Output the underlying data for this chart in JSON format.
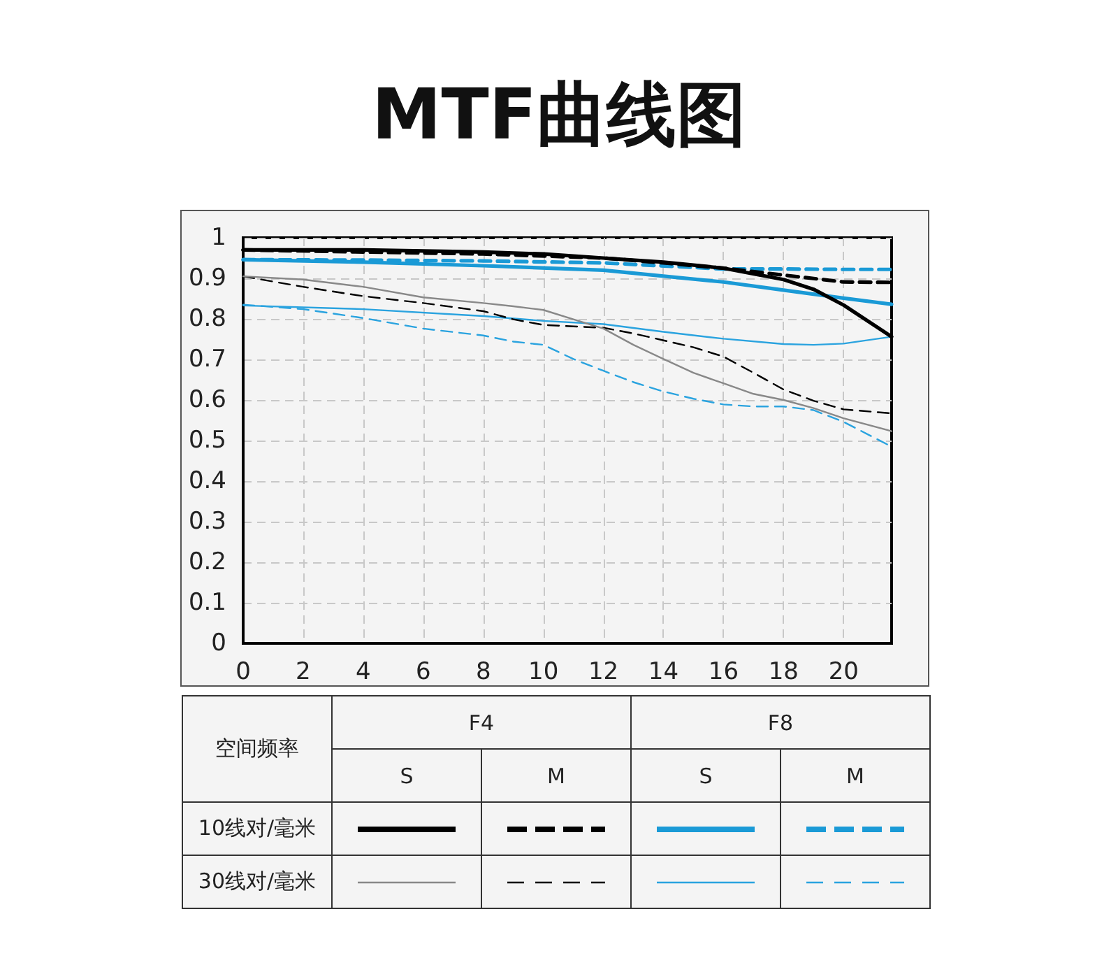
{
  "chart_data": {
    "type": "line",
    "title": "MTF曲线图",
    "xlim": [
      0,
      21.6
    ],
    "xticks": [
      0,
      2,
      4,
      6,
      8,
      10,
      12,
      14,
      16,
      18,
      20
    ],
    "ylim": [
      0,
      1
    ],
    "yticks": [
      0,
      0.1,
      0.2,
      0.3,
      0.4,
      0.5,
      0.6,
      0.7,
      0.8,
      0.9,
      1
    ],
    "grid": true,
    "marker": "none",
    "annotations": [
      "空间频率",
      "F4",
      "F8",
      "S",
      "M",
      "S",
      "M",
      "10线对/毫米",
      "30线对/毫米"
    ],
    "series": [
      {
        "color": "#000000",
        "line_style": "solid",
        "x": [
          0,
          4,
          8,
          10,
          12,
          14,
          16,
          18,
          19,
          20,
          21.6
        ],
        "values": [
          0.97,
          0.97,
          0.965,
          0.96,
          0.95,
          0.94,
          0.925,
          0.897,
          0.873,
          0.834,
          0.756
        ]
      },
      {
        "color": "#000000",
        "line_style": "dashed",
        "x": [
          0,
          4,
          8,
          12,
          14,
          16,
          18,
          20,
          21.6
        ],
        "values": [
          0.97,
          0.965,
          0.96,
          0.95,
          0.938,
          0.925,
          0.908,
          0.891,
          0.89
        ]
      },
      {
        "color": "#1a9ad6",
        "line_style": "solid",
        "x": [
          0,
          4,
          8,
          12,
          16,
          18,
          20,
          21.6
        ],
        "values": [
          0.946,
          0.94,
          0.931,
          0.92,
          0.891,
          0.871,
          0.851,
          0.836
        ]
      },
      {
        "color": "#1a9ad6",
        "line_style": "dashed",
        "x": [
          0,
          4,
          8,
          12,
          16,
          18,
          20,
          21.6
        ],
        "values": [
          0.946,
          0.945,
          0.943,
          0.938,
          0.923,
          0.923,
          0.922,
          0.922
        ]
      },
      {
        "color": "#888888",
        "line_style": "solid",
        "x": [
          0,
          2,
          4,
          6,
          8,
          9,
          10,
          11,
          12,
          13,
          14,
          15,
          16,
          17,
          18,
          19,
          20,
          21.6
        ],
        "values": [
          0.905,
          0.897,
          0.879,
          0.853,
          0.839,
          0.831,
          0.822,
          0.799,
          0.776,
          0.736,
          0.701,
          0.667,
          0.641,
          0.615,
          0.6,
          0.58,
          0.555,
          0.523
        ]
      },
      {
        "color": "#000000",
        "line_style": "dashed",
        "x": [
          0,
          2,
          4,
          6,
          8,
          9,
          10,
          12,
          13,
          14,
          15,
          16,
          17,
          18,
          19,
          20,
          21.6
        ],
        "values": [
          0.905,
          0.879,
          0.856,
          0.839,
          0.819,
          0.799,
          0.785,
          0.778,
          0.764,
          0.747,
          0.73,
          0.707,
          0.667,
          0.626,
          0.598,
          0.577,
          0.567
        ]
      },
      {
        "color": "#2aa3df",
        "line_style": "solid",
        "x": [
          0,
          4,
          8,
          10,
          12,
          14,
          16,
          18,
          19,
          20,
          21.6
        ],
        "values": [
          0.833,
          0.824,
          0.807,
          0.795,
          0.787,
          0.768,
          0.751,
          0.738,
          0.736,
          0.739,
          0.756
        ]
      },
      {
        "color": "#2aa3df",
        "line_style": "dashed",
        "x": [
          0,
          2,
          4,
          6,
          8,
          9,
          10,
          11,
          12,
          13,
          14,
          15,
          16,
          17,
          18,
          19,
          20,
          21.6
        ],
        "values": [
          0.835,
          0.824,
          0.802,
          0.776,
          0.759,
          0.744,
          0.736,
          0.701,
          0.672,
          0.644,
          0.621,
          0.603,
          0.589,
          0.584,
          0.584,
          0.575,
          0.546,
          0.485
        ]
      }
    ]
  }
}
